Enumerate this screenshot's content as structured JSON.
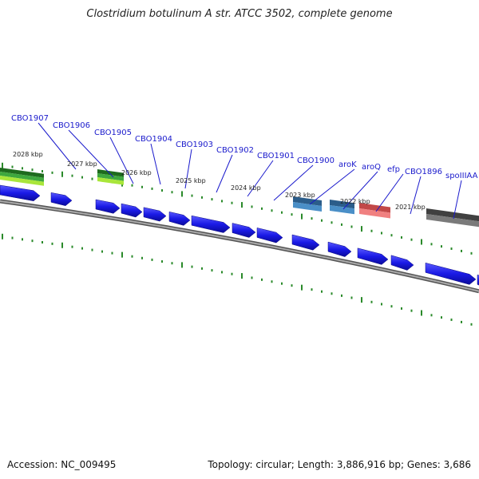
{
  "title": "Clostridium botulinum A str. ATCC 3502, complete genome",
  "footer": {
    "accession": "Accession: NC_009495",
    "topology": "Topology: circular; Length: 3,886,916 bp; Genes: 3,686"
  },
  "colors": {
    "cds": "#1a1ae6",
    "backbone": "#808080",
    "tick": "#2a8a2a",
    "label": "#1a1acc",
    "ruler_text": "#222222"
  },
  "ruler_labels": [
    "2028 kbp",
    "2027 kbp",
    "2026 kbp",
    "2025 kbp",
    "2024 kbp",
    "2023 kbp",
    "2022 kbp",
    "2021 kbp"
  ],
  "gene_labels": [
    "CBO1907",
    "CBO1906",
    "CBO1905",
    "CBO1904",
    "CBO1903",
    "CBO1902",
    "CBO1901",
    "CBO1900",
    "aroK",
    "aroQ",
    "efp",
    "CBO1896",
    "spoIIIAA"
  ],
  "feature_tracks": [
    {
      "kind": "green",
      "colors": [
        "#1e6b1e",
        "#3ea83e",
        "#a9e63a"
      ]
    },
    {
      "kind": "green",
      "colors": [
        "#1e6b1e",
        "#3ea83e",
        "#a9e63a"
      ]
    },
    {
      "kind": "blue",
      "colors": [
        "#2b5d8a",
        "#4a8fc7"
      ]
    },
    {
      "kind": "blue",
      "colors": [
        "#2b5d8a",
        "#4a8fc7"
      ]
    },
    {
      "kind": "red",
      "colors": [
        "#c24848",
        "#f08080"
      ]
    },
    {
      "kind": "gray",
      "colors": [
        "#404040",
        "#7a7a7a"
      ]
    }
  ]
}
